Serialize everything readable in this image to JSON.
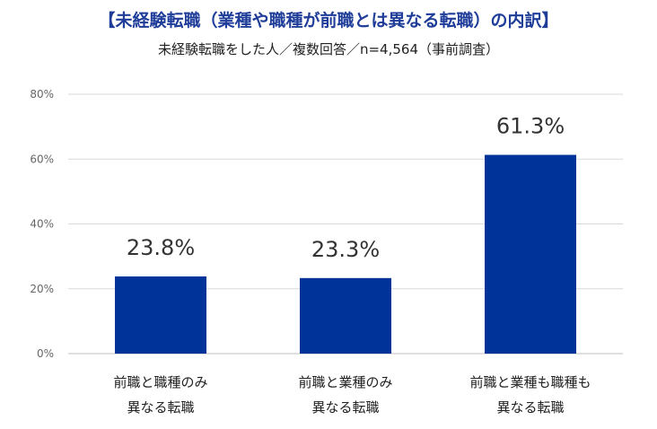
{
  "chart_data": {
    "type": "bar",
    "title": "【未経験転職（業種や職種が前職とは異なる転職）の内訳】",
    "subtitle": "未経験転職をした人／複数回答／n=4,564（事前調査）",
    "categories": [
      [
        "前職と職種のみ",
        "異なる転職"
      ],
      [
        "前職と業種のみ",
        "異なる転職"
      ],
      [
        "前職と業種も職種も",
        "異なる転職"
      ]
    ],
    "values": [
      23.8,
      23.3,
      61.3
    ],
    "data_labels": [
      "23.8%",
      "23.3%",
      "61.3%"
    ],
    "yticks": [
      "0%",
      "20%",
      "40%",
      "60%",
      "80%"
    ],
    "ylim": [
      0,
      80
    ],
    "grid": true,
    "legend": false,
    "bar_color": "#003399",
    "grid_color": "#d9d9d9"
  }
}
